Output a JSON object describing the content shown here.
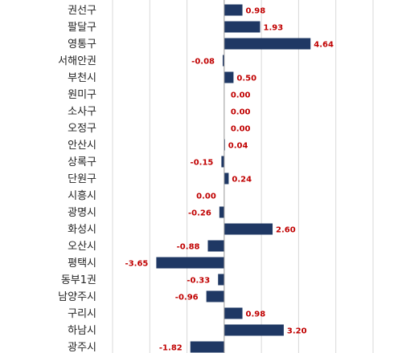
{
  "chart_data": {
    "type": "bar",
    "orientation": "horizontal",
    "categories": [
      "권선구",
      "팔달구",
      "영통구",
      "서해안권",
      "부천시",
      "원미구",
      "소사구",
      "오정구",
      "안산시",
      "상록구",
      "단원구",
      "시흥시",
      "광명시",
      "화성시",
      "오산시",
      "평택시",
      "동부1권",
      "남양주시",
      "구리시",
      "하남시",
      "광주시"
    ],
    "values": [
      0.98,
      1.93,
      4.64,
      -0.08,
      0.5,
      0.0,
      0.0,
      0.0,
      0.04,
      -0.15,
      0.24,
      0.0,
      -0.26,
      2.6,
      -0.88,
      -3.65,
      -0.33,
      -0.96,
      0.98,
      3.2,
      -1.82
    ],
    "value_labels": [
      "0.98",
      "1.93",
      "4.64",
      "-0.08",
      "0.50",
      "0.00",
      "0.00",
      "0.00",
      "0.04",
      "-0.15",
      "0.24",
      "0.00",
      "-0.26",
      "2.60",
      "-0.88",
      "-3.65",
      "-0.33",
      "-0.96",
      "0.98",
      "3.20",
      "-1.82"
    ],
    "xlim": [
      -6,
      8
    ],
    "grid_step": 2,
    "grid": true,
    "bar_color": "#1f3864",
    "label_color": "#c00000"
  }
}
